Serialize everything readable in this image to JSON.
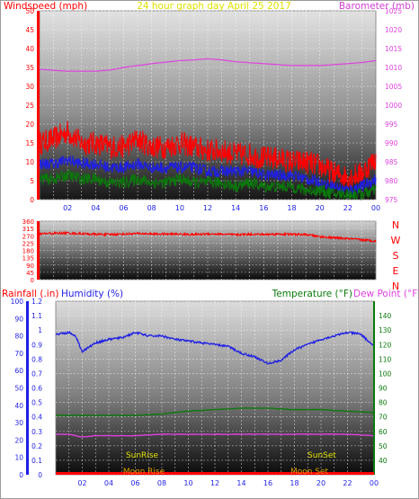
{
  "header": {
    "windspeed_label": "Windspeed (mph)",
    "title": "24 hour graph day   April 25 2017",
    "barometer_label": "Barometer (mb)"
  },
  "bottom_header": {
    "rainfall_label": "Rainfall (.in)",
    "humidity_label": "Humidity (%)",
    "temperature_label": "Temperature (°F)",
    "dewpoint_label": "Dew Point (°F)"
  },
  "colors": {
    "red": "#ff0000",
    "blue": "#1e1ee6",
    "green": "#0a7a0a",
    "magenta": "#e040e0",
    "yellow": "#e0e000",
    "grid": "#ffffff"
  },
  "annotations": {
    "sunrise": "SunRise",
    "sunset": "SunSet",
    "moonrise": "Moon Rise",
    "moonset": "Moon Set"
  },
  "chart_data": [
    {
      "type": "line",
      "title": "24 hour graph day   April 25 2017",
      "x_tick_labels": [
        "02",
        "04",
        "06",
        "08",
        "10",
        "12",
        "14",
        "16",
        "18",
        "20",
        "22",
        "00"
      ],
      "y_left": {
        "label": "Windspeed (mph)",
        "ticks": [
          0,
          5,
          10,
          15,
          20,
          25,
          30,
          35,
          40,
          45,
          50
        ],
        "range": [
          0,
          50
        ]
      },
      "y_right": {
        "label": "Barometer (mb)",
        "ticks": [
          975,
          980,
          985,
          990,
          995,
          1000,
          1005,
          1010,
          1015,
          1020,
          1025
        ],
        "range": [
          975,
          1025
        ]
      },
      "grid": true,
      "series": [
        {
          "role": "wind_gust",
          "color": "red",
          "x": [
            0,
            1,
            2,
            3,
            4,
            5,
            6,
            7,
            8,
            9,
            10,
            11,
            12,
            13,
            14,
            15,
            16,
            17,
            18,
            19,
            20,
            21,
            22,
            23,
            24
          ],
          "values": [
            14,
            15,
            17,
            14,
            14,
            13,
            13,
            15,
            13,
            13,
            14,
            13,
            12,
            12,
            11,
            11,
            10,
            10,
            9,
            9,
            8,
            6,
            5,
            6,
            10
          ]
        },
        {
          "role": "wind_avg",
          "color": "blue",
          "x": [
            0,
            1,
            2,
            3,
            4,
            5,
            6,
            7,
            8,
            9,
            10,
            11,
            12,
            13,
            14,
            15,
            16,
            17,
            18,
            19,
            20,
            21,
            22,
            23,
            24
          ],
          "values": [
            9,
            9,
            10,
            9,
            9,
            8,
            8,
            9,
            8,
            8,
            8,
            8,
            7,
            7,
            7,
            7,
            6,
            6,
            6,
            5,
            4,
            3,
            2,
            3,
            5
          ]
        },
        {
          "role": "wind_low",
          "color": "green",
          "x": [
            0,
            1,
            2,
            3,
            4,
            5,
            6,
            7,
            8,
            9,
            10,
            11,
            12,
            13,
            14,
            15,
            16,
            17,
            18,
            19,
            20,
            21,
            22,
            23,
            24
          ],
          "values": [
            5,
            5,
            6,
            5,
            5,
            4,
            4,
            5,
            4,
            4,
            5,
            4,
            4,
            4,
            3,
            4,
            3,
            3,
            3,
            2,
            2,
            1,
            1,
            1,
            2
          ]
        },
        {
          "name": "Barometer (mb)",
          "axis": "right",
          "color": "magenta",
          "x": [
            0,
            2,
            4,
            5,
            6,
            8,
            10,
            11,
            12,
            13,
            14,
            16,
            18,
            20,
            22,
            23,
            24
          ],
          "values": [
            1009.5,
            1009,
            1009,
            1009.3,
            1010,
            1011,
            1011.8,
            1012,
            1012.3,
            1012,
            1011.5,
            1011,
            1010.5,
            1010.5,
            1011,
            1011.3,
            1011.8
          ]
        }
      ]
    },
    {
      "type": "line",
      "x_tick_labels": [
        "02",
        "04",
        "06",
        "08",
        "10",
        "12",
        "14",
        "16",
        "18",
        "20",
        "22",
        "00"
      ],
      "y_left": {
        "ticks": [
          0,
          45,
          90,
          135,
          180,
          225,
          270,
          315,
          360
        ],
        "range": [
          0,
          360
        ]
      },
      "y_right_labels": [
        "N",
        "W",
        "S",
        "E",
        "N"
      ],
      "grid": true,
      "series": [
        {
          "role": "wind_direction",
          "color": "red",
          "x": [
            0,
            1,
            2,
            3,
            4,
            5,
            6,
            7,
            8,
            9,
            10,
            11,
            12,
            13,
            14,
            15,
            16,
            17,
            18,
            19,
            20,
            21,
            22,
            23,
            24
          ],
          "values": [
            282,
            285,
            287,
            283,
            279,
            278,
            281,
            284,
            282,
            280,
            281,
            278,
            282,
            280,
            276,
            280,
            278,
            281,
            279,
            277,
            265,
            258,
            252,
            245,
            238
          ]
        }
      ]
    },
    {
      "type": "line",
      "x_tick_labels": [
        "02",
        "04",
        "06",
        "08",
        "10",
        "12",
        "14",
        "16",
        "18",
        "20",
        "22",
        "00"
      ],
      "y_rain": {
        "label": "Rainfall (.in)",
        "ticks": [
          0,
          0.1,
          0.2,
          0.3,
          0.4,
          0.5,
          0.6,
          0.7,
          0.8,
          0.9,
          1,
          1.1,
          1.2
        ],
        "range": [
          0,
          1.2
        ]
      },
      "y_humidity": {
        "label": "Humidity (%)",
        "ticks": [
          0,
          10,
          20,
          30,
          40,
          50,
          60,
          70,
          80,
          90,
          100
        ],
        "range": [
          0,
          100
        ]
      },
      "y_temp": {
        "label": "Temperature (°F)",
        "ticks": [
          40,
          50,
          60,
          70,
          80,
          90,
          100,
          110,
          120,
          130,
          140
        ],
        "range": [
          30,
          150
        ]
      },
      "grid": true,
      "series": [
        {
          "name": "Humidity (%)",
          "axis": "humidity",
          "color": "blue",
          "x": [
            0,
            1,
            1.5,
            2,
            3,
            4,
            5,
            6,
            7,
            8,
            9,
            10,
            11,
            12,
            13,
            14,
            15,
            16,
            17,
            18,
            19,
            20,
            21,
            22,
            23,
            24
          ],
          "values": [
            81,
            82,
            80,
            71,
            76,
            78,
            79,
            82,
            80,
            80,
            78,
            77,
            76,
            75,
            74,
            70,
            68,
            64,
            66,
            72,
            75,
            78,
            80,
            82,
            81,
            74
          ]
        },
        {
          "name": "Temperature (°F)",
          "axis": "temp",
          "color": "green",
          "x": [
            0,
            2,
            4,
            6,
            8,
            10,
            12,
            14,
            16,
            18,
            20,
            22,
            24
          ],
          "values": [
            71,
            71,
            71,
            71,
            72,
            74,
            75,
            76,
            76,
            75,
            75,
            74,
            73
          ]
        },
        {
          "name": "Dew Point (°F)",
          "axis": "temp",
          "color": "magenta",
          "x": [
            0,
            1,
            2,
            3,
            4,
            6,
            8,
            10,
            12,
            14,
            16,
            18,
            20,
            22,
            24
          ],
          "values": [
            58,
            58,
            56,
            57,
            57,
            57,
            58,
            58,
            58,
            58,
            58,
            58,
            58,
            58,
            57
          ]
        },
        {
          "name": "Rainfall (.in)",
          "axis": "rain",
          "color": "red",
          "x": [
            0,
            24
          ],
          "values": [
            0,
            0
          ]
        }
      ]
    }
  ]
}
